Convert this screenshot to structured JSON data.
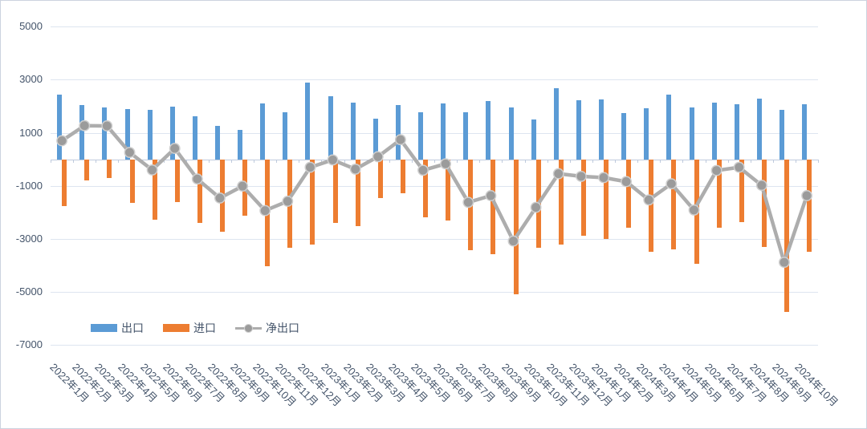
{
  "chart_data": {
    "type": "bar",
    "subtype": "combo-bar-line",
    "title": "",
    "categories": [
      "2022年1月",
      "2022年2月",
      "2022年3月",
      "2022年4月",
      "2022年5月",
      "2022年6月",
      "2022年7月",
      "2022年8月",
      "2022年9月",
      "2022年10月",
      "2022年11月",
      "2022年12月",
      "2023年1月",
      "2023年2月",
      "2023年3月",
      "2023年4月",
      "2023年5月",
      "2023年6月",
      "2023年7月",
      "2023年8月",
      "2023年9月",
      "2023年10月",
      "2023年11月",
      "2023年12月",
      "2024年1月",
      "2024年2月",
      "2024年3月",
      "2024年4月",
      "2024年5月",
      "2024年6月",
      "2024年7月",
      "2024年8月",
      "2024年9月",
      "2024年10月"
    ],
    "series": [
      {
        "name": "出口",
        "chart_type": "bar",
        "color": "#5B9BD5",
        "values": [
          2440,
          2050,
          1960,
          1890,
          1870,
          1990,
          1620,
          1270,
          1110,
          2100,
          1760,
          2880,
          2370,
          2130,
          1540,
          2040,
          1790,
          2110,
          1790,
          2200,
          1960,
          1510,
          2670,
          2220,
          2270,
          1740,
          1920,
          2430,
          1960,
          2140,
          2070,
          2300,
          1860,
          2090
        ]
      },
      {
        "name": "进口",
        "chart_type": "bar",
        "color": "#ED7D31",
        "values": [
          -1750,
          -800,
          -700,
          -1630,
          -2280,
          -1600,
          -2390,
          -2740,
          -2130,
          -4030,
          -3340,
          -3200,
          -2390,
          -2520,
          -1460,
          -1280,
          -2180,
          -2310,
          -3420,
          -3570,
          -5080,
          -3320,
          -3220,
          -2890,
          -2990,
          -2590,
          -3470,
          -3390,
          -3930,
          -2570,
          -2370,
          -3290,
          -5740,
          -3470
        ]
      },
      {
        "name": "净出口",
        "chart_type": "line",
        "color": "#ADADAD",
        "marker_color": "#9B9B9B",
        "marker_ring_color": "#CFCFCF",
        "values": [
          700,
          1270,
          1260,
          260,
          -400,
          410,
          -740,
          -1460,
          -1010,
          -1930,
          -1580,
          -300,
          -20,
          -370,
          100,
          740,
          -410,
          -170,
          -1620,
          -1370,
          -3080,
          -1810,
          -540,
          -640,
          -690,
          -840,
          -1530,
          -920,
          -1910,
          -420,
          -300,
          -980,
          -3880,
          -1370
        ]
      }
    ],
    "y_axis": {
      "min": -7000,
      "max": 5000,
      "tick_interval": 2000,
      "ticks": [
        5000,
        3000,
        1000,
        -1000,
        -3000,
        -5000,
        -7000
      ]
    },
    "x_axis": {
      "label_rotation_deg": 45
    },
    "legend": {
      "position": "bottom-left"
    },
    "grid": true,
    "colors": {
      "grid": "#dde5f0",
      "axis": "#bfcadd",
      "text": "#44546A",
      "background": "#ffffff",
      "border": "#ccd3df"
    }
  }
}
